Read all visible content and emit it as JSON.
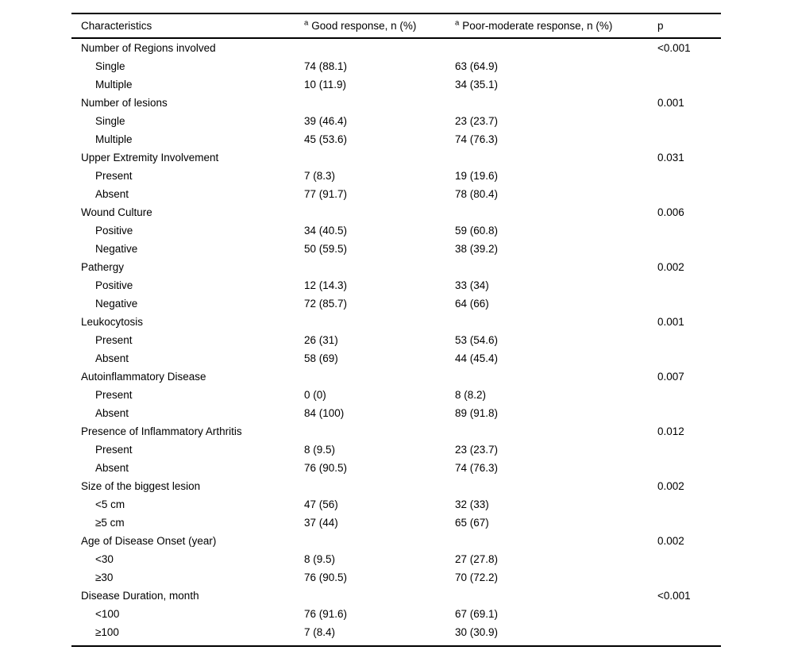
{
  "table": {
    "columns": [
      {
        "label": "Characteristics"
      },
      {
        "sup": "a",
        "label": "Good response, n (%)"
      },
      {
        "sup": "a",
        "label": "Poor-moderate response, n (%)"
      },
      {
        "label": "p"
      }
    ],
    "sections": [
      {
        "label": "Number of Regions involved",
        "p": "<0.001",
        "items": [
          {
            "label": "Single",
            "good": "74 (88.1)",
            "poor": "63 (64.9)"
          },
          {
            "label": "Multiple",
            "good": "10 (11.9)",
            "poor": "34 (35.1)"
          }
        ]
      },
      {
        "label": "Number of lesions",
        "p": "0.001",
        "items": [
          {
            "label": "Single",
            "good": "39 (46.4)",
            "poor": "23 (23.7)"
          },
          {
            "label": "Multiple",
            "good": "45 (53.6)",
            "poor": "74 (76.3)"
          }
        ]
      },
      {
        "label": "Upper Extremity Involvement",
        "p": "0.031",
        "items": [
          {
            "label": "Present",
            "good": "7 (8.3)",
            "poor": "19 (19.6)"
          },
          {
            "label": "Absent",
            "good": "77 (91.7)",
            "poor": "78 (80.4)"
          }
        ]
      },
      {
        "label": "Wound Culture",
        "p": "0.006",
        "items": [
          {
            "label": "Positive",
            "good": "34 (40.5)",
            "poor": "59 (60.8)"
          },
          {
            "label": "Negative",
            "good": "50 (59.5)",
            "poor": "38 (39.2)"
          }
        ]
      },
      {
        "label": "Pathergy",
        "p": "0.002",
        "items": [
          {
            "label": "Positive",
            "good": "12 (14.3)",
            "poor": "33 (34)"
          },
          {
            "label": "Negative",
            "good": "72 (85.7)",
            "poor": "64 (66)"
          }
        ]
      },
      {
        "label": "Leukocytosis",
        "p": "0.001",
        "items": [
          {
            "label": "Present",
            "good": "26 (31)",
            "poor": "53 (54.6)"
          },
          {
            "label": "Absent",
            "good": "58 (69)",
            "poor": "44 (45.4)"
          }
        ]
      },
      {
        "label": "Autoinflammatory Disease",
        "p": "0.007",
        "items": [
          {
            "label": "Present",
            "good": "0 (0)",
            "poor": "8 (8.2)"
          },
          {
            "label": "Absent",
            "good": "84 (100)",
            "poor": "89 (91.8)"
          }
        ]
      },
      {
        "label": "Presence of Inflammatory Arthritis",
        "p": "0.012",
        "items": [
          {
            "label": "Present",
            "good": "8 (9.5)",
            "poor": "23 (23.7)"
          },
          {
            "label": "Absent",
            "good": "76 (90.5)",
            "poor": "74 (76.3)"
          }
        ]
      },
      {
        "label": "Size of the biggest lesion",
        "p": "0.002",
        "items": [
          {
            "label": "<5 cm",
            "good": "47 (56)",
            "poor": "32 (33)"
          },
          {
            "label": "≥5 cm",
            "good": "37 (44)",
            "poor": "65 (67)"
          }
        ]
      },
      {
        "label": "Age of Disease Onset (year)",
        "p": "0.002",
        "items": [
          {
            "label": "<30",
            "good": "8 (9.5)",
            "poor": "27 (27.8)"
          },
          {
            "label": "≥30",
            "good": "76 (90.5)",
            "poor": "70 (72.2)"
          }
        ]
      },
      {
        "label": "Disease Duration, month",
        "p": "<0.001",
        "items": [
          {
            "label": "<100",
            "good": "76 (91.6)",
            "poor": "67 (69.1)"
          },
          {
            "label": "≥100",
            "good": "7 (8.4)",
            "poor": "30 (30.9)"
          }
        ]
      }
    ]
  }
}
